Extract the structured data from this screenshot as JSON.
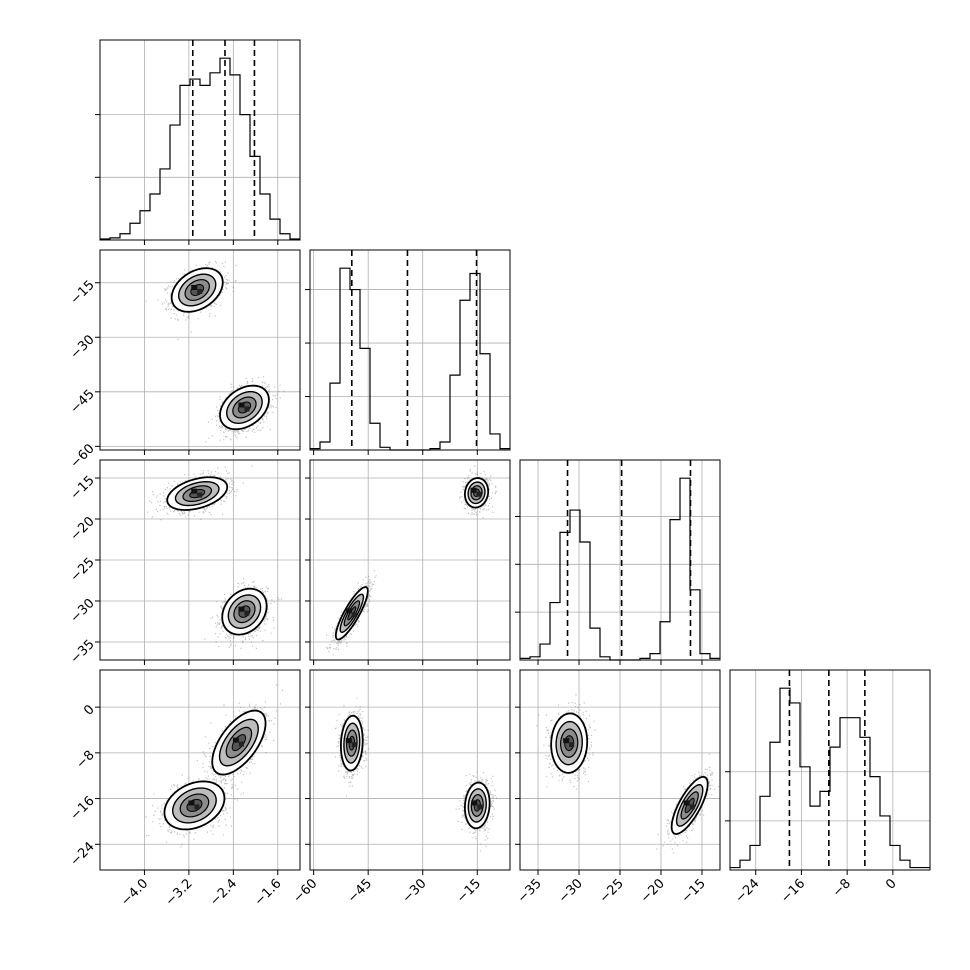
{
  "chart_data": {
    "type": "corner",
    "title": "",
    "parameters": [
      {
        "range": [
          -4.8,
          -1.2
        ],
        "ticks": [
          -4.0,
          -3.2,
          -2.4,
          -1.6
        ],
        "tick_labels": [
          "−4.0",
          "−3.2",
          "−2.4",
          "−1.6"
        ]
      },
      {
        "range": [
          -61,
          -6
        ],
        "ticks": [
          -60,
          -45,
          -30,
          -15
        ],
        "tick_labels": [
          "−60",
          "−45",
          "−30",
          "−15"
        ]
      },
      {
        "range": [
          -37.2,
          -12.8
        ],
        "ticks": [
          -35,
          -30,
          -25,
          -20,
          -15
        ],
        "tick_labels": [
          "−35",
          "−30",
          "−25",
          "−20",
          "−15"
        ]
      },
      {
        "range": [
          -28.5,
          6.5
        ],
        "ticks": [
          -24,
          -16,
          -8,
          0
        ],
        "tick_labels": [
          "−24",
          "−16",
          "−8",
          "0"
        ]
      }
    ],
    "diagonals": [
      {
        "histogram": [
          0.5,
          1,
          3,
          8,
          14,
          22,
          34,
          55,
          74,
          77,
          74,
          80,
          87,
          79,
          60,
          40,
          22,
          10,
          3,
          0.5
        ],
        "quantiles": [
          -3.13,
          -2.55,
          -2.02
        ],
        "y_gridlines": [
          30,
          60
        ]
      },
      {
        "histogram": [
          0.5,
          3,
          25,
          68,
          60,
          38,
          10,
          1,
          0,
          0,
          0,
          0,
          0.5,
          3,
          28,
          56,
          66,
          36,
          6,
          0.5
        ],
        "quantiles": [
          -49.5,
          -34.2,
          -15.2
        ],
        "y_gridlines": [
          20,
          40,
          60
        ]
      },
      {
        "histogram": [
          0.5,
          1,
          5,
          18,
          40,
          47,
          37,
          10,
          1,
          0,
          0,
          0,
          0.5,
          2,
          12,
          44,
          57,
          22,
          2,
          0.5
        ],
        "quantiles": [
          -31.4,
          -24.8,
          -16.4
        ],
        "y_gridlines": [
          15,
          30,
          45
        ]
      },
      {
        "histogram": [
          0.5,
          2,
          5,
          15,
          26,
          37,
          34,
          21,
          13,
          16,
          25,
          31,
          31,
          27,
          19,
          11,
          5,
          2,
          0.5,
          0.5
        ],
        "quantiles": [
          -18.1,
          -11.2,
          -4.9
        ],
        "y_gridlines": [
          10,
          20
        ]
      }
    ],
    "pairs": [
      {
        "row": 1,
        "col": 0,
        "modes": [
          {
            "cx": -3.05,
            "cy": -17.0,
            "sx": 0.23,
            "sy": 3.0,
            "rho": 0.35,
            "weight": 0.5
          },
          {
            "cx": -2.2,
            "cy": -49.3,
            "sx": 0.22,
            "sy": 3.0,
            "rho": 0.35,
            "weight": 0.5
          }
        ]
      },
      {
        "row": 2,
        "col": 0,
        "modes": [
          {
            "cx": -3.05,
            "cy": -16.9,
            "sx": 0.27,
            "sy": 1.0,
            "rho": 0.4,
            "weight": 0.5
          },
          {
            "cx": -2.2,
            "cy": -31.3,
            "sx": 0.2,
            "sy": 1.4,
            "rho": 0.25,
            "weight": 0.5
          }
        ]
      },
      {
        "row": 2,
        "col": 1,
        "modes": [
          {
            "cx": -49.5,
            "cy": -31.5,
            "sx": 2.2,
            "sy": 1.6,
            "rho": 0.85,
            "weight": 0.5
          },
          {
            "cx": -15.2,
            "cy": -16.8,
            "sx": 1.6,
            "sy": 0.9,
            "rho": 0.1,
            "weight": 0.5
          }
        ]
      },
      {
        "row": 3,
        "col": 0,
        "modes": [
          {
            "cx": -3.1,
            "cy": -17.2,
            "sx": 0.27,
            "sy": 2.1,
            "rho": 0.3,
            "weight": 0.5
          },
          {
            "cx": -2.3,
            "cy": -6.2,
            "sx": 0.24,
            "sy": 2.8,
            "rho": 0.6,
            "weight": 0.5
          }
        ]
      },
      {
        "row": 3,
        "col": 1,
        "modes": [
          {
            "cx": -49.5,
            "cy": -6.3,
            "sx": 1.5,
            "sy": 2.4,
            "rho": 0.1,
            "weight": 0.5
          },
          {
            "cx": -15.0,
            "cy": -17.2,
            "sx": 1.7,
            "sy": 2.0,
            "rho": 0.1,
            "weight": 0.5
          }
        ]
      },
      {
        "row": 3,
        "col": 2,
        "modes": [
          {
            "cx": -31.2,
            "cy": -6.3,
            "sx": 1.1,
            "sy": 2.6,
            "rho": 0.05,
            "weight": 0.5
          },
          {
            "cx": -16.5,
            "cy": -17.2,
            "sx": 1.1,
            "sy": 2.5,
            "rho": 0.75,
            "weight": 0.5
          }
        ]
      }
    ],
    "grid": true,
    "legend": "none"
  }
}
